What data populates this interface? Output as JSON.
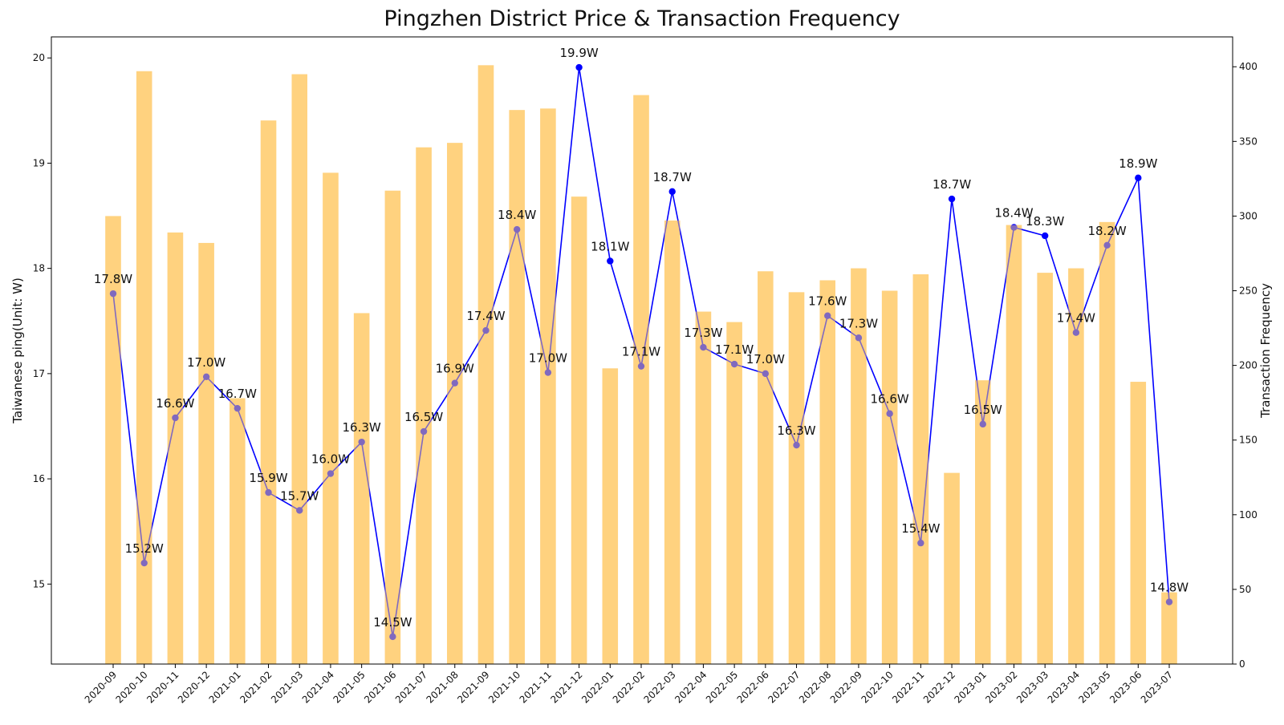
{
  "chart_data": {
    "type": "bar",
    "title": "Pingzhen District Price & Transaction Frequency",
    "ylabel_left": "Taiwanese ping(Unit: W)",
    "ylabel_right": "Transaction Frequency",
    "categories": [
      "2020-09",
      "2020-10",
      "2020-11",
      "2020-12",
      "2021-01",
      "2021-02",
      "2021-03",
      "2021-04",
      "2021-05",
      "2021-06",
      "2021-07",
      "2021-08",
      "2021-09",
      "2021-10",
      "2021-11",
      "2021-12",
      "2022-01",
      "2022-02",
      "2022-03",
      "2022-04",
      "2022-05",
      "2022-06",
      "2022-07",
      "2022-08",
      "2022-09",
      "2022-10",
      "2022-11",
      "2022-12",
      "2023-01",
      "2023-02",
      "2023-03",
      "2023-04",
      "2023-05",
      "2023-06",
      "2023-07"
    ],
    "series": [
      {
        "kind": "bar",
        "axis": "right",
        "color": "#ffd27f",
        "values": [
          300,
          397,
          289,
          282,
          178,
          364,
          395,
          329,
          235,
          317,
          346,
          349,
          401,
          371,
          372,
          313,
          198,
          381,
          297,
          236,
          229,
          263,
          249,
          257,
          265,
          250,
          261,
          128,
          190,
          294,
          262,
          265,
          296,
          189,
          48
        ]
      },
      {
        "kind": "line",
        "axis": "left",
        "color": "#0000ff",
        "values": [
          17.76,
          15.2,
          16.58,
          16.97,
          16.67,
          15.87,
          15.7,
          16.05,
          16.35,
          14.5,
          16.45,
          16.91,
          17.41,
          18.37,
          17.01,
          19.91,
          18.07,
          17.07,
          18.73,
          17.25,
          17.09,
          17.0,
          16.32,
          17.55,
          17.34,
          16.62,
          15.39,
          18.66,
          16.52,
          18.39,
          18.31,
          17.39,
          18.22,
          18.86,
          14.83
        ]
      }
    ],
    "point_labels": [
      "17.8W",
      "15.2W",
      "16.6W",
      "17.0W",
      "16.7W",
      "15.9W",
      "15.7W",
      "16.0W",
      "16.3W",
      "14.5W",
      "16.5W",
      "16.9W",
      "17.4W",
      "18.4W",
      "17.0W",
      "19.9W",
      "18.1W",
      "17.1W",
      "18.7W",
      "17.3W",
      "17.1W",
      "17.0W",
      "16.3W",
      "17.6W",
      "17.3W",
      "16.6W",
      "15.4W",
      "18.7W",
      "16.5W",
      "18.4W",
      "18.3W",
      "17.4W",
      "18.2W",
      "18.9W",
      "14.8W"
    ],
    "ylim_left": [
      14.24,
      20.2
    ],
    "ylim_right": [
      0,
      420
    ],
    "yticks_left": [
      "15",
      "16",
      "17",
      "18",
      "19",
      "20"
    ],
    "yticks_right": [
      "0",
      "50",
      "100",
      "150",
      "200",
      "250",
      "300",
      "350",
      "400"
    ],
    "grid": false,
    "legend": "none"
  }
}
